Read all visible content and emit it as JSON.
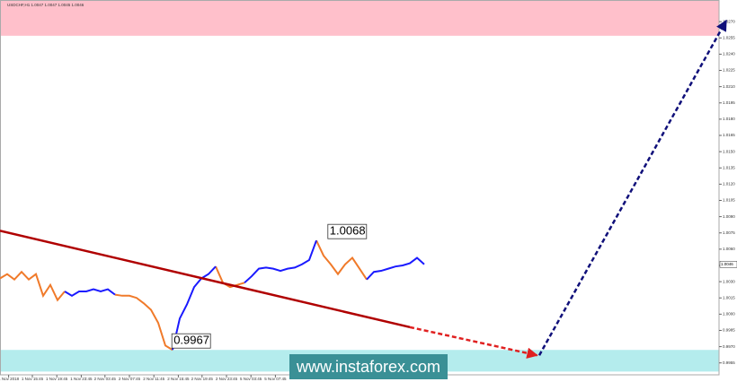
{
  "chart_data": {
    "type": "line",
    "title": "USDCHF,H1 1.0047 1.0047 1.0045 1.0046",
    "xlim": [
      0,
      100
    ],
    "ylim": [
      0.9944,
      1.029
    ],
    "yticks": [
      {
        "value": 0.9955,
        "label": "0.9955"
      },
      {
        "value": 0.997,
        "label": "0.9970"
      },
      {
        "value": 0.9985,
        "label": "0.9985"
      },
      {
        "value": 1.0,
        "label": "1.0000"
      },
      {
        "value": 1.0015,
        "label": "1.0015"
      },
      {
        "value": 1.003,
        "label": "1.0030"
      },
      {
        "value": 1.0045,
        "label": "1.0045"
      },
      {
        "value": 1.006,
        "label": "1.0060"
      },
      {
        "value": 1.0075,
        "label": "1.0075"
      },
      {
        "value": 1.009,
        "label": "1.0090"
      },
      {
        "value": 1.0105,
        "label": "1.0105"
      },
      {
        "value": 1.012,
        "label": "1.0120"
      },
      {
        "value": 1.0135,
        "label": "1.0135"
      },
      {
        "value": 1.015,
        "label": "1.0150"
      },
      {
        "value": 1.0165,
        "label": "1.0165"
      },
      {
        "value": 1.018,
        "label": "1.0180"
      },
      {
        "value": 1.0195,
        "label": "1.0195"
      },
      {
        "value": 1.021,
        "label": "1.0210"
      },
      {
        "value": 1.0225,
        "label": "1.0225"
      },
      {
        "value": 1.024,
        "label": "1.0240"
      },
      {
        "value": 1.0255,
        "label": "1.0255"
      },
      {
        "value": 1.027,
        "label": "1.0270"
      }
    ],
    "xticks": [
      {
        "value": 1.2,
        "label": "1 Nov 2018"
      },
      {
        "value": 4.5,
        "label": "1 Nov 15:45"
      },
      {
        "value": 7.9,
        "label": "1 Nov 19:45"
      },
      {
        "value": 11.3,
        "label": "1 Nov 23:45"
      },
      {
        "value": 14.6,
        "label": "2 Nov 03:45"
      },
      {
        "value": 18,
        "label": "2 Nov 07:45"
      },
      {
        "value": 21.4,
        "label": "2 Nov 11:45"
      },
      {
        "value": 24.8,
        "label": "2 Nov 15:45"
      },
      {
        "value": 28.1,
        "label": "2 Nov 19:45"
      },
      {
        "value": 31.5,
        "label": "2 Nov 23:45"
      },
      {
        "value": 34.9,
        "label": "5 Nov 03:45"
      },
      {
        "value": 38.3,
        "label": "5 Nov 07:45"
      }
    ],
    "series": [
      {
        "color": "#f07a2a",
        "values": [
          1.0033,
          1.0037,
          1.0032,
          1.0039,
          1.0032,
          1.0037,
          1.0017,
          1.0027,
          1.0013,
          1.0021,
          null,
          null,
          null,
          null,
          null,
          null,
          1.0018,
          1.0017,
          1.0017,
          1.0015,
          1.001,
          1.0004,
          0.9992,
          0.9971,
          0.9967,
          null,
          null,
          null,
          null,
          null,
          1.0044,
          1.0029,
          1.0025,
          1.0027,
          1.0029,
          null,
          null,
          null,
          null,
          null,
          null,
          null,
          null,
          null,
          1.0068,
          1.0054,
          1.0046,
          1.0037,
          1.0046,
          1.0052,
          1.0042,
          1.0032,
          null,
          null,
          null,
          null,
          null,
          null,
          null,
          null
        ]
      },
      {
        "color": "#1a1aff",
        "values": [
          null,
          null,
          null,
          null,
          null,
          null,
          null,
          null,
          null,
          1.0021,
          1.0017,
          1.0021,
          1.0021,
          1.0023,
          1.0021,
          1.0023,
          1.0018,
          null,
          null,
          null,
          null,
          null,
          null,
          null,
          0.9967,
          0.9996,
          1.0009,
          1.0025,
          1.0033,
          1.0037,
          1.0044,
          null,
          null,
          null,
          1.0029,
          1.0035,
          1.0042,
          1.0043,
          1.0042,
          1.004,
          1.0042,
          1.0043,
          1.0046,
          1.005,
          1.0068,
          null,
          null,
          null,
          null,
          null,
          null,
          1.0032,
          1.0039,
          1.004,
          1.0042,
          1.0044,
          1.0045,
          1.0047,
          1.0052,
          1.0046
        ]
      }
    ],
    "zones": [
      {
        "from": 1.0257,
        "to": 1.029,
        "color": "#ffc0cb"
      },
      {
        "from": 0.9947,
        "to": 0.9967,
        "color": "#b4eced"
      }
    ],
    "lines": [
      {
        "points": [
          [
            0,
            1.0077
          ],
          [
            57,
            0.9988
          ]
        ],
        "color": "#b00000",
        "dashed": false,
        "arrow": false
      },
      {
        "points": [
          [
            57,
            0.9988
          ],
          [
            74.7,
            0.9962
          ]
        ],
        "color": "#e02020",
        "dashed": true,
        "arrow": true
      },
      {
        "points": [
          [
            75,
            0.9962
          ],
          [
            101,
            1.0271
          ]
        ],
        "color": "#10107a",
        "dashed": true,
        "arrow": true
      }
    ],
    "annotations": [
      {
        "text": "1.0068",
        "x": 45.6,
        "y": 1.0068
      },
      {
        "text": "0.9967",
        "x": 23.9,
        "y": 0.9967
      }
    ],
    "last_price": {
      "value": 1.0046,
      "label": "1.0046"
    },
    "watermark": "www.instaforex.com"
  }
}
